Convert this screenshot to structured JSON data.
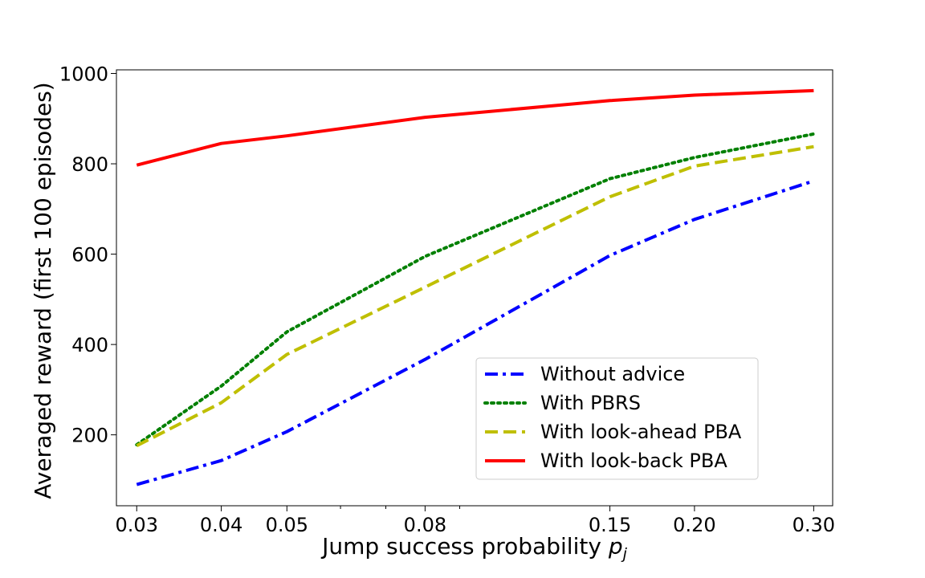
{
  "chart_data": {
    "type": "line",
    "title": "",
    "xlabel": "Jump success probability",
    "xlabel_symbol": "p",
    "xlabel_subscript": "j",
    "ylabel": "Averaged reward (first 100 episodes)",
    "xscale": "log",
    "xlim": [
      0.028,
      0.32
    ],
    "ylim": [
      43,
      1008
    ],
    "x": [
      0.03,
      0.04,
      0.05,
      0.08,
      0.15,
      0.2,
      0.3
    ],
    "xtick_labels": [
      "0.03",
      "0.04",
      "0.05",
      "0.08",
      "0.15",
      "0.20",
      "0.30"
    ],
    "yticks": [
      200,
      400,
      600,
      800,
      1000
    ],
    "ytick_labels": [
      "200",
      "400",
      "600",
      "800",
      "1000"
    ],
    "grid": false,
    "legend_position": "lower-right",
    "series": [
      {
        "name": "Without advice",
        "color": "#0000ff",
        "style": "dashdot",
        "values": [
          90,
          143,
          207,
          367,
          597,
          677,
          762
        ]
      },
      {
        "name": "With PBRS",
        "color": "#008000",
        "style": "dotted",
        "values": [
          178,
          308,
          428,
          595,
          767,
          814,
          866
        ]
      },
      {
        "name": "With look-ahead PBA",
        "color": "#bfbf00",
        "style": "dashed",
        "values": [
          176,
          271,
          378,
          527,
          727,
          795,
          838
        ]
      },
      {
        "name": "With look-back PBA",
        "color": "#ff0000",
        "style": "solid",
        "values": [
          797,
          845,
          862,
          903,
          940,
          952,
          962
        ]
      }
    ]
  }
}
